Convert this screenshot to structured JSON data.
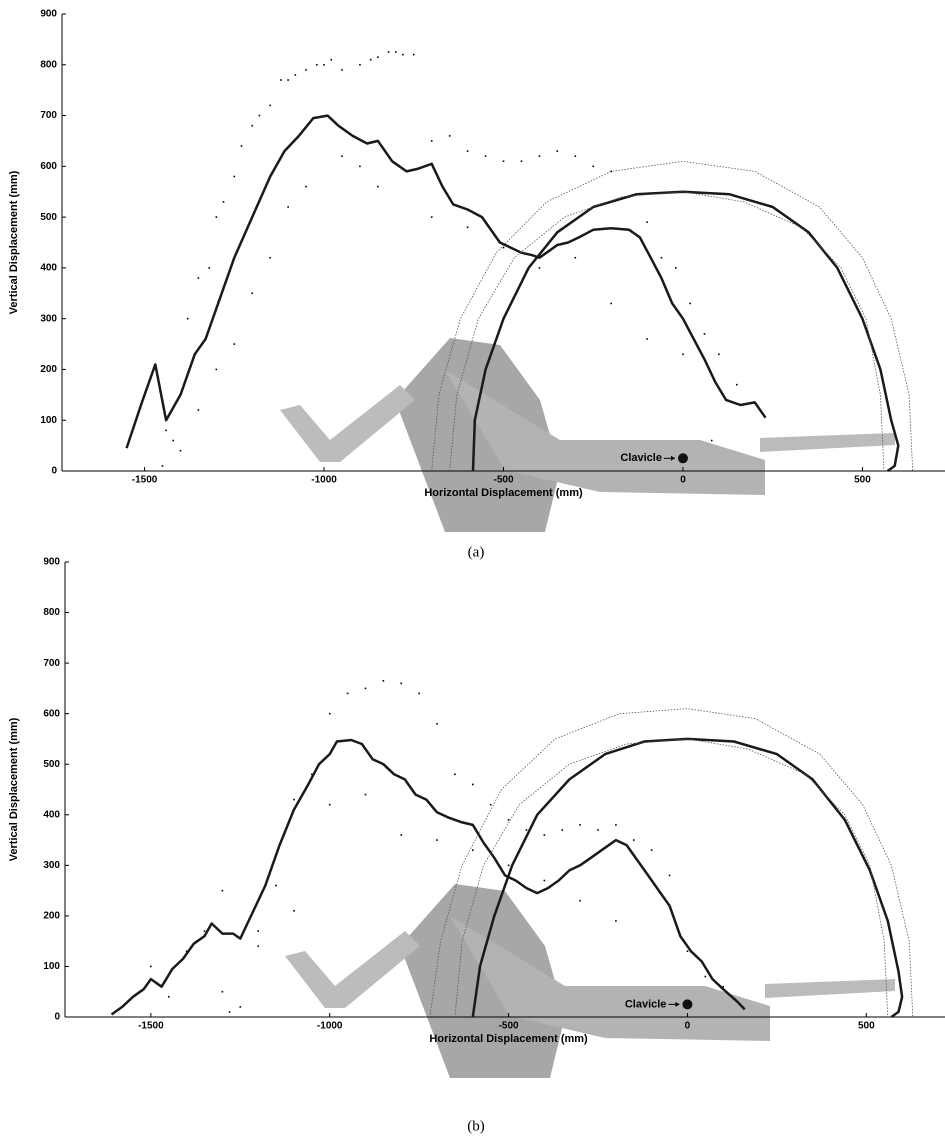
{
  "chart_data": [
    {
      "type": "line",
      "caption": "(a)",
      "x_label": "Horizontal Displacement (mm)",
      "y_label": "Vertical Displacement (mm)",
      "xlim": [
        -1730,
        730
      ],
      "ylim": [
        0,
        900
      ],
      "xticks": [
        -1500,
        -1000,
        -500,
        0,
        500
      ],
      "yticks": [
        0,
        100,
        200,
        300,
        400,
        500,
        600,
        700,
        800,
        900
      ],
      "annotation": {
        "text": "Clavicle",
        "x": 0,
        "y": 25
      },
      "series": [
        {
          "color": "#1a1a1a",
          "line_style": "solid",
          "x": [
            -1550,
            -1510,
            -1470,
            -1440,
            -1400,
            -1360,
            -1330,
            -1290,
            -1250,
            -1200,
            -1150,
            -1110,
            -1070,
            -1030,
            -990,
            -960,
            -920,
            -880,
            -850,
            -810,
            -770,
            -740,
            -700,
            -670,
            -640,
            -600,
            -560,
            -510,
            -480,
            -450,
            -420,
            -400,
            -380,
            -350,
            -320,
            -290,
            -250,
            -200,
            -150,
            -120,
            -90,
            -60,
            -30,
            0,
            30,
            60,
            90,
            120,
            160,
            200,
            230
          ],
          "values": [
            45,
            130,
            210,
            100,
            150,
            230,
            260,
            340,
            420,
            500,
            580,
            630,
            660,
            695,
            700,
            680,
            660,
            645,
            650,
            610,
            590,
            595,
            605,
            560,
            525,
            515,
            500,
            450,
            440,
            430,
            425,
            420,
            430,
            445,
            450,
            460,
            475,
            478,
            475,
            460,
            420,
            380,
            330,
            300,
            260,
            220,
            175,
            140,
            130,
            135,
            105
          ]
        },
        {
          "color": "#1a1a1a",
          "line_style": "solid",
          "x": [
            -585,
            -580,
            -550,
            -500,
            -430,
            -350,
            -250,
            -130,
            0,
            130,
            250,
            350,
            430,
            500,
            550,
            580,
            600,
            590,
            570
          ],
          "values": [
            0,
            100,
            200,
            300,
            400,
            470,
            520,
            545,
            550,
            545,
            520,
            470,
            400,
            300,
            200,
            100,
            50,
            10,
            0
          ]
        },
        {
          "color": "#555555",
          "line_style": "dotted",
          "x": [
            -700,
            -680,
            -620,
            -520,
            -380,
            -200,
            0,
            200,
            380,
            500,
            580,
            630,
            640
          ],
          "values": [
            0,
            150,
            300,
            430,
            530,
            590,
            610,
            590,
            520,
            420,
            300,
            150,
            0
          ]
        },
        {
          "color": "#555555",
          "line_style": "dotted",
          "x": [
            -650,
            -630,
            -570,
            -470,
            -330,
            -170,
            0,
            170,
            330,
            440,
            510,
            550,
            560
          ],
          "values": [
            0,
            150,
            300,
            420,
            500,
            540,
            550,
            530,
            480,
            400,
            300,
            150,
            0
          ]
        }
      ],
      "scatter": {
        "color": "#000000",
        "x": [
          -1450,
          -1420,
          -1400,
          -1380,
          -1350,
          -1320,
          -1300,
          -1280,
          -1250,
          -1230,
          -1200,
          -1180,
          -1150,
          -1120,
          -1100,
          -1080,
          -1050,
          -1020,
          -1000,
          -980,
          -950,
          -900,
          -870,
          -850,
          -820,
          -800,
          -780,
          -750,
          -700,
          -650,
          -600,
          -550,
          -500,
          -450,
          -400,
          -350,
          -300,
          -250,
          -200,
          -150,
          -100,
          -60,
          -20,
          20,
          60,
          100,
          150,
          -1440,
          -1400,
          -1350,
          -1300,
          -1250,
          -1200,
          -1150,
          -1100,
          -1050,
          -950,
          -900,
          -850,
          -700,
          -600,
          -500,
          -400,
          -300,
          -200,
          -100,
          0,
          80
        ],
        "y": [
          10,
          60,
          150,
          300,
          380,
          400,
          500,
          530,
          580,
          640,
          680,
          700,
          720,
          770,
          770,
          780,
          790,
          800,
          800,
          810,
          790,
          800,
          810,
          815,
          825,
          825,
          820,
          820,
          650,
          660,
          630,
          620,
          610,
          610,
          620,
          630,
          620,
          600,
          590,
          540,
          490,
          420,
          400,
          330,
          270,
          230,
          170,
          80,
          40,
          120,
          200,
          250,
          350,
          420,
          520,
          560,
          620,
          600,
          560,
          500,
          480,
          440,
          400,
          420,
          330,
          260,
          230,
          60
        ]
      }
    },
    {
      "type": "line",
      "caption": "(b)",
      "x_label": "Horizontal Displacement (mm)",
      "y_label": "Vertical Displacement (mm)",
      "xlim": [
        -1740,
        720
      ],
      "ylim": [
        0,
        900
      ],
      "xticks": [
        -1500,
        -1000,
        -500,
        0,
        500
      ],
      "yticks": [
        0,
        100,
        200,
        300,
        400,
        500,
        600,
        700,
        800,
        900
      ],
      "annotation": {
        "text": "Clavicle",
        "x": 0,
        "y": 25
      },
      "series": [
        {
          "color": "#1a1a1a",
          "line_style": "solid",
          "x": [
            -1610,
            -1580,
            -1550,
            -1520,
            -1500,
            -1470,
            -1440,
            -1410,
            -1380,
            -1350,
            -1330,
            -1300,
            -1270,
            -1250,
            -1220,
            -1180,
            -1140,
            -1100,
            -1060,
            -1030,
            -1000,
            -980,
            -940,
            -910,
            -880,
            -850,
            -820,
            -790,
            -760,
            -730,
            -700,
            -670,
            -630,
            -600,
            -570,
            -540,
            -510,
            -480,
            -450,
            -420,
            -390,
            -360,
            -330,
            -300,
            -270,
            -240,
            -200,
            -170,
            -140,
            -110,
            -80,
            -50,
            -20,
            10,
            40,
            70,
            100,
            140,
            160
          ],
          "values": [
            5,
            20,
            40,
            55,
            75,
            60,
            95,
            115,
            145,
            160,
            185,
            165,
            165,
            155,
            200,
            260,
            340,
            410,
            460,
            500,
            520,
            545,
            548,
            540,
            510,
            500,
            480,
            470,
            440,
            430,
            405,
            395,
            385,
            380,
            345,
            315,
            280,
            270,
            255,
            245,
            255,
            270,
            290,
            300,
            315,
            330,
            350,
            340,
            310,
            280,
            250,
            220,
            160,
            130,
            110,
            75,
            55,
            30,
            15
          ]
        },
        {
          "color": "#1a1a1a",
          "line_style": "solid",
          "x": [
            -600,
            -580,
            -540,
            -490,
            -420,
            -330,
            -230,
            -120,
            0,
            130,
            250,
            350,
            440,
            510,
            560,
            590,
            600,
            590,
            570
          ],
          "values": [
            0,
            100,
            200,
            300,
            400,
            470,
            520,
            545,
            550,
            545,
            520,
            470,
            390,
            290,
            190,
            90,
            40,
            10,
            0
          ]
        },
        {
          "color": "#555555",
          "line_style": "dotted",
          "x": [
            -720,
            -690,
            -630,
            -520,
            -370,
            -190,
            0,
            190,
            370,
            490,
            570,
            620,
            630
          ],
          "values": [
            0,
            150,
            300,
            450,
            550,
            600,
            610,
            590,
            520,
            420,
            300,
            150,
            0
          ]
        },
        {
          "color": "#555555",
          "line_style": "dotted",
          "x": [
            -650,
            -630,
            -570,
            -470,
            -330,
            -170,
            0,
            170,
            330,
            440,
            510,
            550,
            560
          ],
          "values": [
            0,
            150,
            300,
            420,
            500,
            540,
            550,
            530,
            480,
            400,
            300,
            150,
            0
          ]
        }
      ],
      "scatter": {
        "color": "#000000",
        "x": [
          -1500,
          -1450,
          -1400,
          -1350,
          -1300,
          -1280,
          -1250,
          -1200,
          -1150,
          -1100,
          -1050,
          -1000,
          -950,
          -900,
          -850,
          -800,
          -750,
          -700,
          -650,
          -600,
          -550,
          -500,
          -450,
          -400,
          -350,
          -300,
          -250,
          -200,
          -150,
          -100,
          -50,
          0,
          50,
          100,
          -1300,
          -1200,
          -1100,
          -1000,
          -900,
          -800,
          -700,
          -600,
          -500,
          -400,
          -300,
          -200
        ],
        "y": [
          100,
          40,
          130,
          170,
          250,
          10,
          20,
          170,
          260,
          430,
          480,
          600,
          640,
          650,
          665,
          660,
          640,
          580,
          480,
          460,
          420,
          390,
          370,
          360,
          370,
          380,
          370,
          380,
          350,
          330,
          280,
          130,
          80,
          60,
          50,
          140,
          210,
          420,
          440,
          360,
          350,
          330,
          300,
          270,
          230,
          190
        ]
      }
    }
  ]
}
